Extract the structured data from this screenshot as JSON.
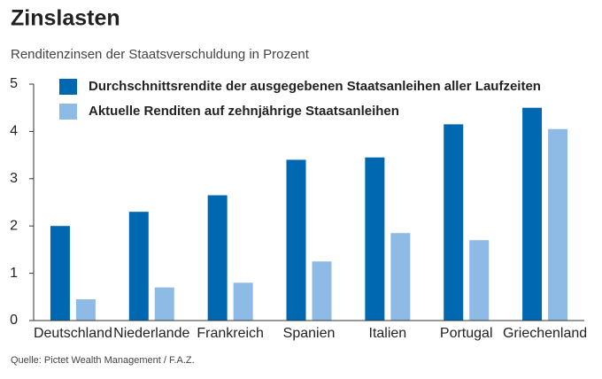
{
  "chart_data": {
    "type": "bar",
    "title": "Zinslasten",
    "subtitle": "Renditenzinsen der Staatsverschuldung in Prozent",
    "source": "Quelle: Pictet Wealth Management / F.A.Z.",
    "categories": [
      "Deutschland",
      "Niederlande",
      "Frankreich",
      "Spanien",
      "Italien",
      "Portugal",
      "Griechenland"
    ],
    "series": [
      {
        "name": "Durchschnittsrendite der ausgegebenen Staatsanleihen aller Laufzeiten",
        "color": "#0067b1",
        "values": [
          2.0,
          2.3,
          2.65,
          3.4,
          3.45,
          4.15,
          4.5
        ]
      },
      {
        "name": "Aktuelle Renditen auf zehnjährige Staatsanleihen",
        "color": "#8dbbe6",
        "values": [
          0.45,
          0.7,
          0.8,
          1.25,
          1.85,
          1.7,
          4.05
        ]
      }
    ],
    "ylim": [
      0,
      5
    ],
    "yticks": [
      0,
      1,
      2,
      3,
      4,
      5
    ],
    "grid": false,
    "legend": "top-left"
  }
}
